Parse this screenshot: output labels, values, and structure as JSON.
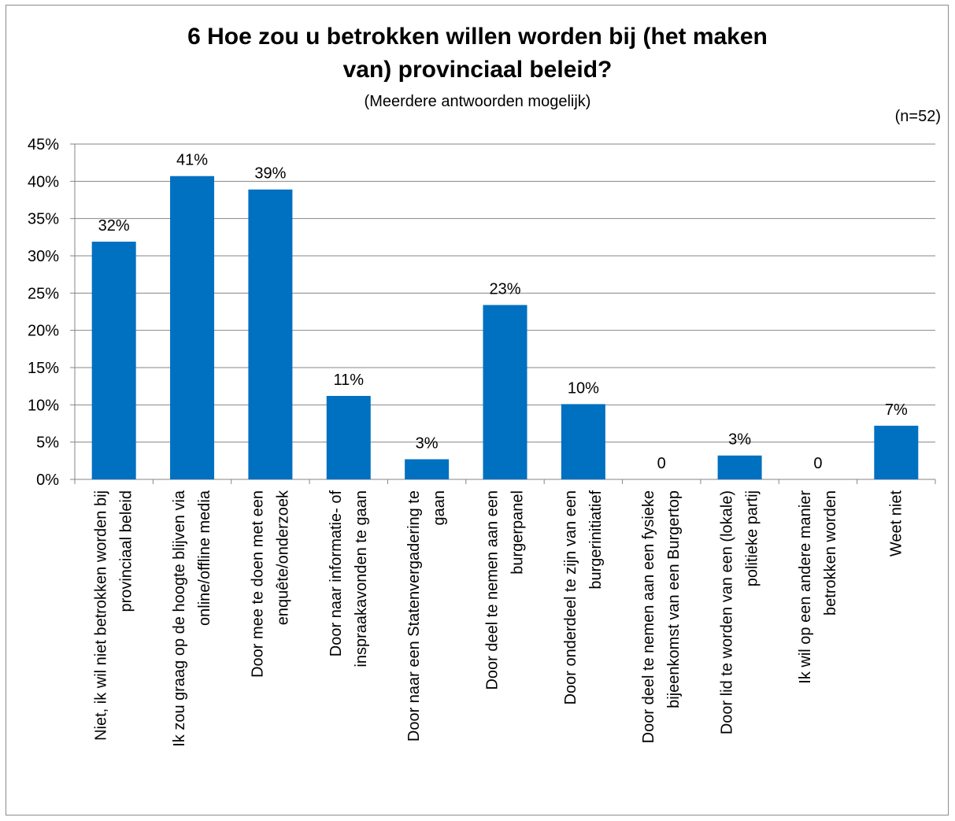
{
  "chart_data": {
    "type": "bar",
    "title_line1": "6 Hoe zou u betrokken willen worden bij (het maken",
    "title_line2": "van) provinciaal beleid?",
    "subtitle": "(Meerdere antwoorden mogelijk)",
    "note": "(n=52)",
    "ylim": [
      0,
      45
    ],
    "y_ticks": [
      0,
      5,
      10,
      15,
      20,
      25,
      30,
      35,
      40,
      45
    ],
    "y_tick_labels": [
      "0%",
      "5%",
      "10%",
      "15%",
      "20%",
      "25%",
      "30%",
      "35%",
      "40%",
      "45%"
    ],
    "grid": true,
    "bar_color": "#0070c0",
    "categories": [
      [
        "Niet, ik wil niet betrokken worden bij",
        "provinciaal beleid"
      ],
      [
        "Ik zou graag op de hoogte blijven via",
        "online/offline media"
      ],
      [
        "Door mee te doen met een",
        "enquête/onderzoek"
      ],
      [
        "Door naar informatie- of",
        "inspraakavonden te gaan"
      ],
      [
        "Door naar een Statenvergadering te",
        "gaan"
      ],
      [
        "Door deel te nemen aan een",
        "burgerpanel"
      ],
      [
        "Door onderdeel te zijn van een",
        "burgerinitiatief"
      ],
      [
        "Door deel te nemen aan een fysieke",
        "bijeenkomst van een Burgertop"
      ],
      [
        "Door lid te worden van een (lokale)",
        "politieke partij"
      ],
      [
        "Ik wil op een andere manier",
        "betrokken worden"
      ],
      [
        "Weet niet"
      ]
    ],
    "values": [
      31.9,
      40.7,
      38.9,
      11.2,
      2.7,
      23.4,
      10.1,
      0,
      3.2,
      0,
      7.2
    ],
    "data_labels": [
      "32%",
      "41%",
      "39%",
      "11%",
      "3%",
      "23%",
      "10%",
      "0",
      "3%",
      "0",
      "7%"
    ]
  }
}
